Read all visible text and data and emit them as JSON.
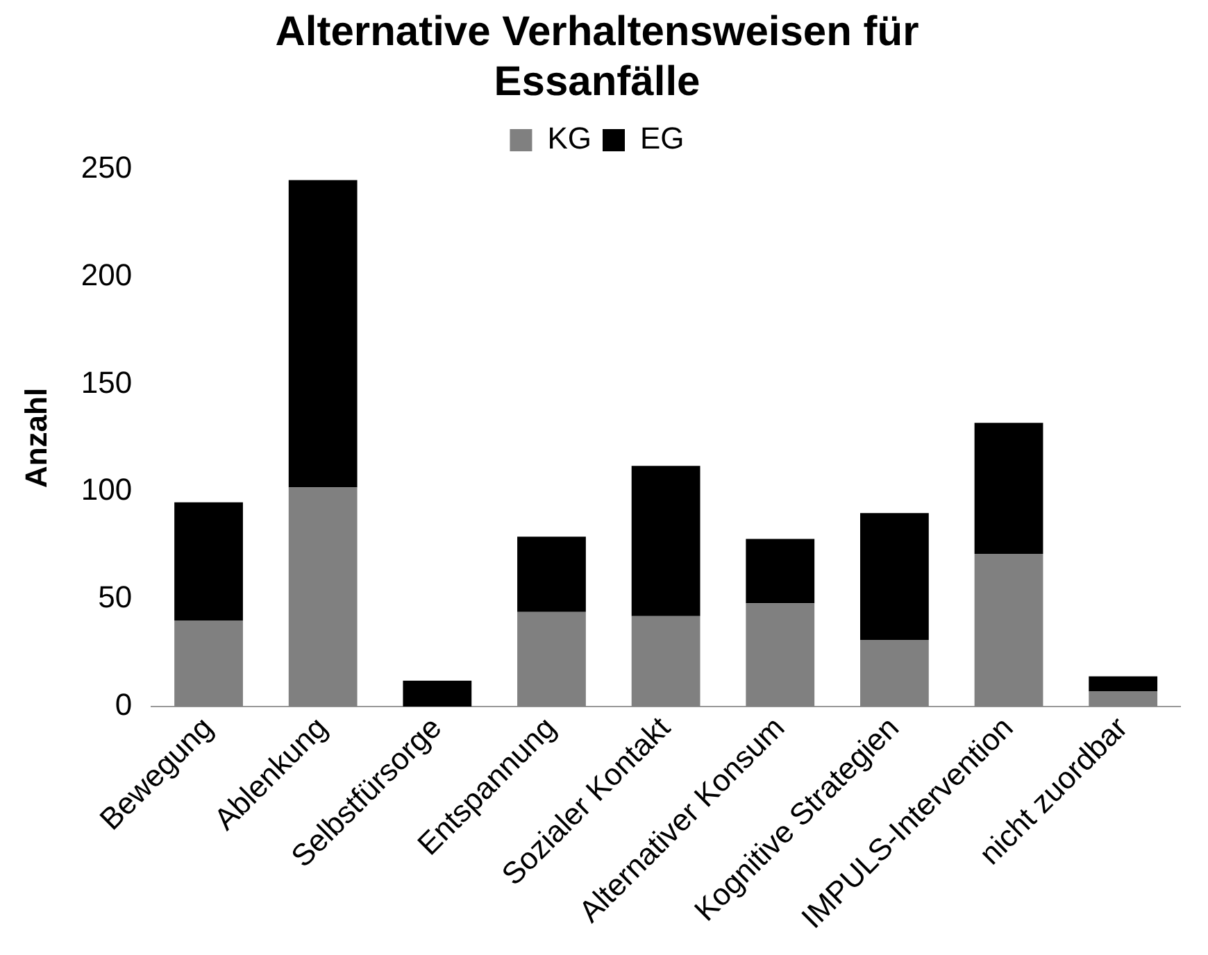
{
  "chart_data": {
    "type": "bar",
    "title": "Alternative Verhaltensweisen für Essanfälle",
    "ylabel": "Anzahl",
    "categories": [
      "Bewegung",
      "Ablenkung",
      "Selbstfürsorge",
      "Entspannung",
      "Sozialer Kontakt",
      "Alternativer Konsum",
      "Kognitive Strategien",
      "IMPULS-Intervention",
      "nicht zuordbar"
    ],
    "series": [
      {
        "name": "KG",
        "color": "#808080",
        "values": [
          40,
          102,
          0,
          44,
          42,
          48,
          31,
          71,
          7
        ]
      },
      {
        "name": "EG",
        "color": "#000000",
        "values": [
          55,
          143,
          12,
          35,
          70,
          30,
          59,
          61,
          7
        ]
      }
    ],
    "stacked": true,
    "ylim": [
      0,
      250
    ],
    "yticks": [
      0,
      50,
      100,
      150,
      200,
      250
    ],
    "grid": false,
    "legend": "top"
  }
}
